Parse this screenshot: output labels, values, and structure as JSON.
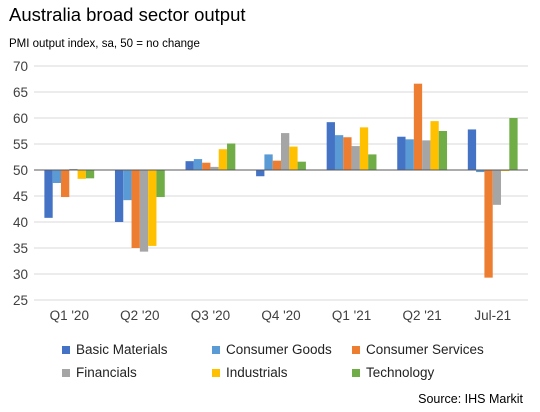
{
  "header": {
    "title": "Australia broad sector output",
    "subtitle": "PMI output index, sa, 50 = no change"
  },
  "source": "Source: IHS Markit",
  "chart_data": {
    "type": "bar",
    "title": "Australia broad sector output",
    "subtitle": "PMI output index, sa, 50 = no change",
    "categories": [
      "Q1 '20",
      "Q2 '20",
      "Q3 '20",
      "Q4 '20",
      "Q1 '21",
      "Q2 '21",
      "Jul-21"
    ],
    "baseline": 50,
    "ylim": [
      25,
      70
    ],
    "yticks": [
      25,
      30,
      35,
      40,
      45,
      50,
      55,
      60,
      65,
      70
    ],
    "grid": true,
    "legend_position": "bottom",
    "series": [
      {
        "name": "Basic Materials",
        "color": "#4472c4",
        "values": [
          40.8,
          40.0,
          51.7,
          48.8,
          59.2,
          56.4,
          57.8
        ]
      },
      {
        "name": "Consumer Goods",
        "color": "#5b9bd5",
        "values": [
          47.5,
          44.2,
          52.1,
          53.0,
          56.7,
          55.9,
          49.6
        ]
      },
      {
        "name": "Consumer Services",
        "color": "#ed7d31",
        "values": [
          44.8,
          35.0,
          51.4,
          51.8,
          56.3,
          66.6,
          29.3
        ]
      },
      {
        "name": "Financials",
        "color": "#a5a5a5",
        "values": [
          50.2,
          34.3,
          50.6,
          57.1,
          54.6,
          55.7,
          43.3
        ]
      },
      {
        "name": "Industrials",
        "color": "#ffc000",
        "values": [
          48.3,
          35.4,
          54.0,
          54.5,
          58.2,
          59.4,
          49.8
        ]
      },
      {
        "name": "Technology",
        "color": "#70ad47",
        "values": [
          48.4,
          44.8,
          55.1,
          51.6,
          53.0,
          57.5,
          60.0
        ]
      }
    ]
  }
}
